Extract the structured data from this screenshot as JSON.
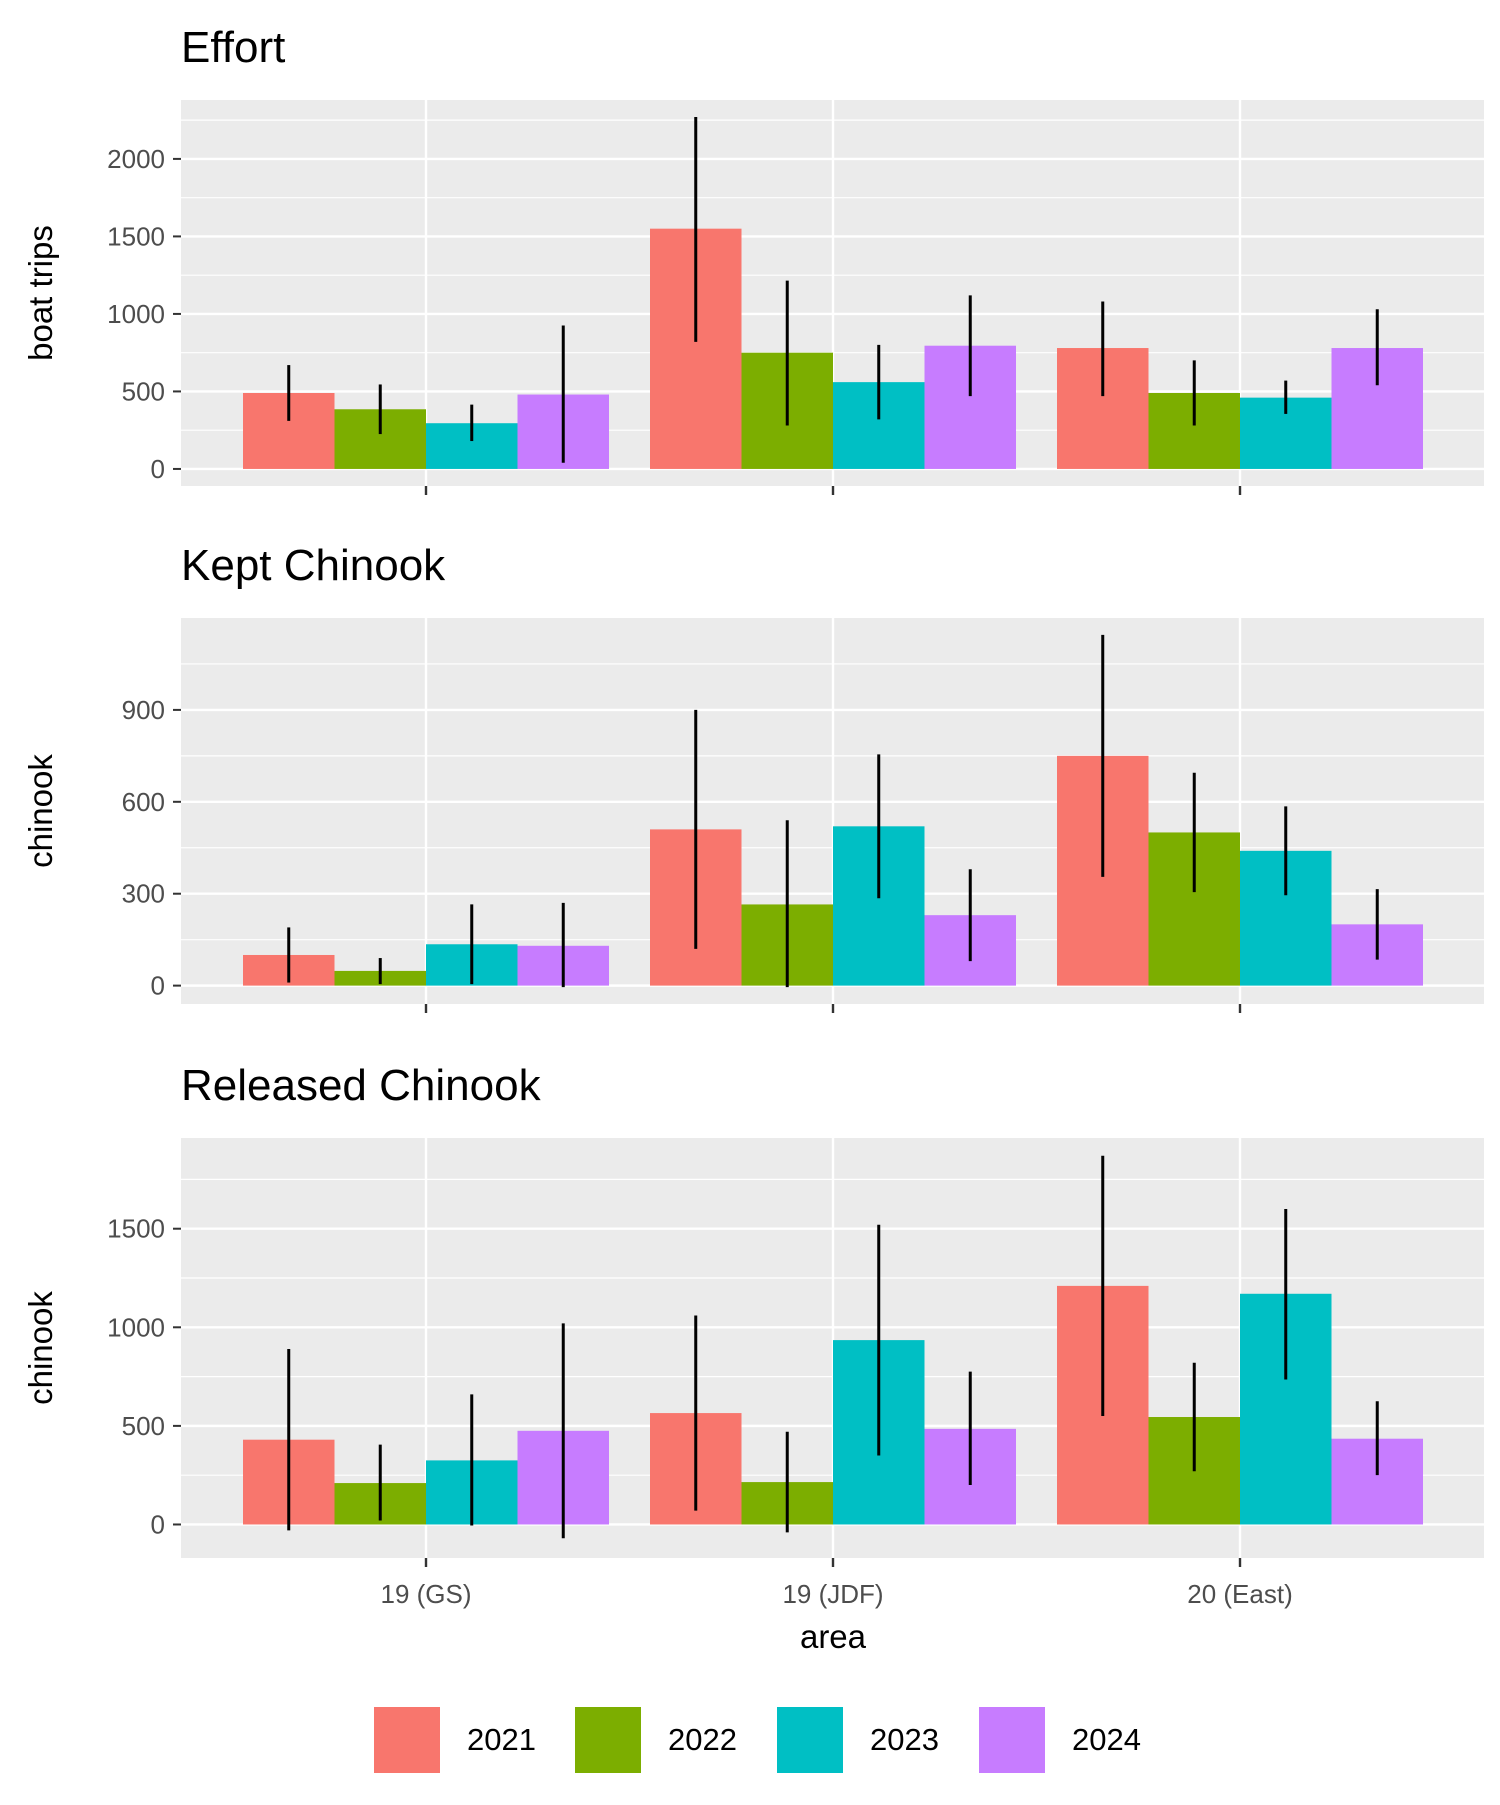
{
  "chart_data": [
    {
      "type": "bar",
      "title": "Effort",
      "xlabel": "",
      "ylabel": "boat trips",
      "categories": [
        "19 (GS)",
        "19 (JDF)",
        "20 (East)"
      ],
      "ylim": [
        -110,
        2380
      ],
      "yticks": [
        0,
        500,
        1000,
        1500,
        2000
      ],
      "show_x_tick_labels": false,
      "series": [
        {
          "name": "2021",
          "values": [
            490,
            1550,
            780
          ],
          "err_low": [
            310,
            820,
            470
          ],
          "err_high": [
            670,
            2270,
            1080
          ]
        },
        {
          "name": "2022",
          "values": [
            385,
            750,
            490
          ],
          "err_low": [
            225,
            280,
            280
          ],
          "err_high": [
            545,
            1215,
            700
          ]
        },
        {
          "name": "2023",
          "values": [
            295,
            560,
            460
          ],
          "err_low": [
            180,
            320,
            355
          ],
          "err_high": [
            415,
            800,
            570
          ]
        },
        {
          "name": "2024",
          "values": [
            480,
            795,
            780
          ],
          "err_low": [
            40,
            470,
            540
          ],
          "err_high": [
            925,
            1120,
            1030
          ]
        }
      ]
    },
    {
      "type": "bar",
      "title": "Kept Chinook",
      "xlabel": "",
      "ylabel": "chinook",
      "categories": [
        "19 (GS)",
        "19 (JDF)",
        "20 (East)"
      ],
      "ylim": [
        -60,
        1200
      ],
      "yticks": [
        0,
        300,
        600,
        900
      ],
      "show_x_tick_labels": false,
      "series": [
        {
          "name": "2021",
          "values": [
            100,
            510,
            750
          ],
          "err_low": [
            10,
            120,
            355
          ],
          "err_high": [
            190,
            900,
            1145
          ]
        },
        {
          "name": "2022",
          "values": [
            48,
            265,
            500
          ],
          "err_low": [
            5,
            -5,
            305
          ],
          "err_high": [
            90,
            540,
            695
          ]
        },
        {
          "name": "2023",
          "values": [
            135,
            520,
            440
          ],
          "err_low": [
            5,
            285,
            295
          ],
          "err_high": [
            265,
            755,
            585
          ]
        },
        {
          "name": "2024",
          "values": [
            130,
            230,
            200
          ],
          "err_low": [
            -5,
            80,
            85
          ],
          "err_high": [
            270,
            380,
            315
          ]
        }
      ]
    },
    {
      "type": "bar",
      "title": "Released Chinook",
      "xlabel": "area",
      "ylabel": "chinook",
      "categories": [
        "19 (GS)",
        "19 (JDF)",
        "20 (East)"
      ],
      "ylim": [
        -170,
        1960
      ],
      "yticks": [
        0,
        500,
        1000,
        1500
      ],
      "show_x_tick_labels": true,
      "series": [
        {
          "name": "2021",
          "values": [
            430,
            565,
            1210
          ],
          "err_low": [
            -30,
            70,
            550
          ],
          "err_high": [
            890,
            1060,
            1870
          ]
        },
        {
          "name": "2022",
          "values": [
            210,
            215,
            545
          ],
          "err_low": [
            20,
            -40,
            270
          ],
          "err_high": [
            405,
            470,
            820
          ]
        },
        {
          "name": "2023",
          "values": [
            325,
            935,
            1170
          ],
          "err_low": [
            -5,
            350,
            735
          ],
          "err_high": [
            660,
            1520,
            1600
          ]
        },
        {
          "name": "2024",
          "values": [
            475,
            485,
            435
          ],
          "err_low": [
            -70,
            200,
            250
          ],
          "err_high": [
            1020,
            775,
            625
          ]
        }
      ]
    }
  ],
  "legend": {
    "items": [
      {
        "label": "2021",
        "color": "#F8766D"
      },
      {
        "label": "2022",
        "color": "#7CAE00"
      },
      {
        "label": "2023",
        "color": "#00BFC4"
      },
      {
        "label": "2024",
        "color": "#C77CFF"
      }
    ],
    "placement": "bottom"
  },
  "style": {
    "panel_background": "#EBEBEB",
    "grid_color": "#FFFFFF",
    "error_bar_color": "#000000",
    "text_color": "#000000",
    "tick_text_color": "#4D4D4D"
  }
}
